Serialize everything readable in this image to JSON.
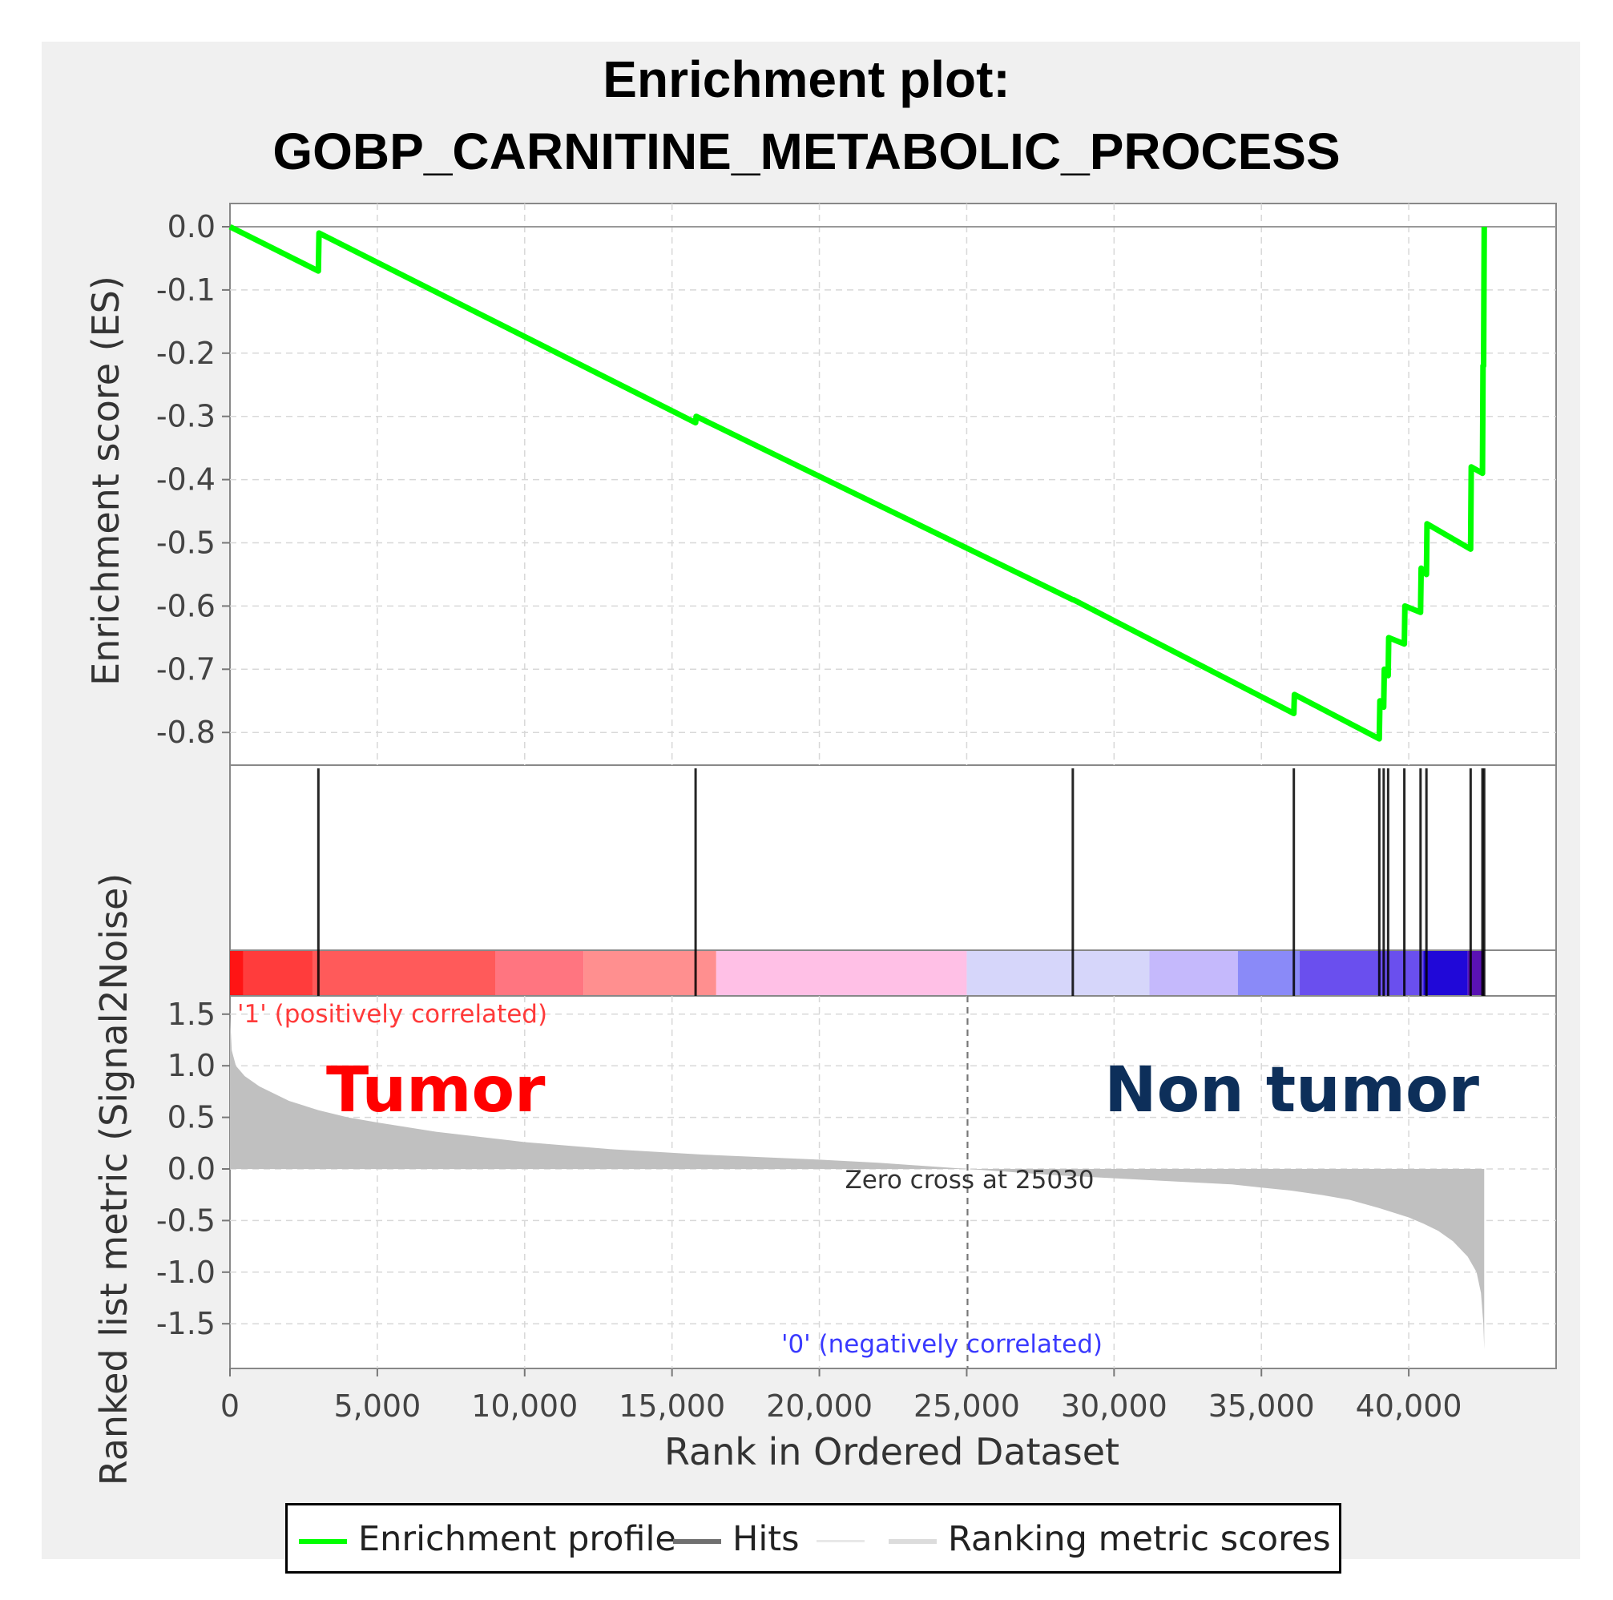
{
  "chart_data": {
    "type": "line",
    "title": "Enrichment plot:",
    "subtitle": "GOBP_CARNITINE_METABOLIC_PROCESS",
    "xlabel": "Rank in Ordered Dataset",
    "xlim": [
      0,
      45000
    ],
    "xticks": [
      "0",
      "5,000",
      "10,000",
      "15,000",
      "20,000",
      "25,000",
      "30,000",
      "35,000",
      "40,000"
    ],
    "top_panel": {
      "ylabel": "Enrichment score (ES)",
      "ylim": [
        -0.85,
        0.02
      ],
      "yticks": [
        "0.0",
        "-0.1",
        "-0.2",
        "-0.3",
        "-0.4",
        "-0.5",
        "-0.6",
        "-0.7",
        "-0.8"
      ],
      "series": [
        {
          "name": "Enrichment profile",
          "color": "#00ff00",
          "x": [
            0,
            3000,
            3020,
            15800,
            15820,
            28600,
            28620,
            36100,
            36120,
            39000,
            39020,
            39150,
            39170,
            39300,
            39320,
            39850,
            39870,
            40400,
            40420,
            40600,
            40620,
            42100,
            42120,
            42500,
            42520,
            42540,
            42560
          ],
          "y": [
            0.0,
            -0.07,
            -0.01,
            -0.31,
            -0.3,
            -0.59,
            -0.59,
            -0.77,
            -0.74,
            -0.81,
            -0.75,
            -0.76,
            -0.7,
            -0.71,
            -0.65,
            -0.66,
            -0.6,
            -0.61,
            -0.54,
            -0.55,
            -0.47,
            -0.51,
            -0.38,
            -0.39,
            -0.22,
            -0.22,
            0.0
          ]
        }
      ],
      "grid": true
    },
    "hits": {
      "name": "Hits",
      "color": "#000000",
      "positions": [
        3000,
        15800,
        28600,
        36100,
        39000,
        39150,
        39300,
        39850,
        40400,
        40600,
        42100,
        42500,
        42560
      ]
    },
    "heat_bar": {
      "segments": [
        {
          "from": 0,
          "to": 450,
          "color": "#ff1414"
        },
        {
          "from": 450,
          "to": 2800,
          "color": "#ff3c3c"
        },
        {
          "from": 2800,
          "to": 9000,
          "color": "#ff5a5a"
        },
        {
          "from": 9000,
          "to": 12000,
          "color": "#ff7580"
        },
        {
          "from": 12000,
          "to": 16500,
          "color": "#ff8f8f"
        },
        {
          "from": 16500,
          "to": 25000,
          "color": "#ffc0e6"
        },
        {
          "from": 25000,
          "to": 31200,
          "color": "#d6d6fa"
        },
        {
          "from": 31200,
          "to": 34200,
          "color": "#c5b9fc"
        },
        {
          "from": 34200,
          "to": 36300,
          "color": "#8a8af8"
        },
        {
          "from": 36300,
          "to": 40500,
          "color": "#6a4fee"
        },
        {
          "from": 40500,
          "to": 42000,
          "color": "#2008d8"
        },
        {
          "from": 42000,
          "to": 42560,
          "color": "#5a12b4"
        }
      ]
    },
    "bottom_panel": {
      "ylabel": "Ranked list metric (Signal2Noise)",
      "ylim": [
        -1.9,
        1.6
      ],
      "yticks": [
        "1.5",
        "1.0",
        "0.5",
        "0.0",
        "-0.5",
        "-1.0",
        "-1.5"
      ],
      "series": [
        {
          "name": "Ranking metric scores",
          "color": "#c0c0c0",
          "x": [
            0,
            60,
            200,
            500,
            1000,
            2000,
            3000,
            4000,
            5000,
            7000,
            10000,
            13000,
            16000,
            20000,
            22000,
            25030,
            28000,
            30000,
            32000,
            34000,
            35000,
            36000,
            37000,
            38000,
            39000,
            40000,
            40500,
            41000,
            41500,
            42000,
            42300,
            42450,
            42530,
            42560
          ],
          "y": [
            1.5,
            1.15,
            1.0,
            0.9,
            0.8,
            0.66,
            0.57,
            0.5,
            0.45,
            0.36,
            0.26,
            0.19,
            0.14,
            0.09,
            0.06,
            0.0,
            -0.06,
            -0.09,
            -0.12,
            -0.15,
            -0.18,
            -0.21,
            -0.25,
            -0.3,
            -0.38,
            -0.47,
            -0.53,
            -0.6,
            -0.7,
            -0.85,
            -1.0,
            -1.2,
            -1.5,
            -1.75
          ]
        }
      ],
      "zero_cross": 25030,
      "annotations": {
        "pos_label": "'1' (positively correlated)",
        "neg_label": "'0' (negatively correlated)",
        "zero_cross_label": "Zero cross at 25030",
        "left_group": "Tumor",
        "right_group": "Non tumor"
      },
      "colors": {
        "pos": "#ff3a3a",
        "neg": "#3a3aff",
        "left_group": "#ff0000",
        "right_group": "#0d2f5a"
      },
      "grid": true
    },
    "legend": {
      "placement": "bottom-center",
      "entries": [
        {
          "label": "Enrichment profile",
          "color": "#00ff00"
        },
        {
          "label": "Hits",
          "color": "#707070"
        },
        {
          "label": "",
          "color": "#e8e8e8"
        },
        {
          "label": "Ranking metric scores",
          "color": "#dcdcdc"
        }
      ]
    }
  }
}
